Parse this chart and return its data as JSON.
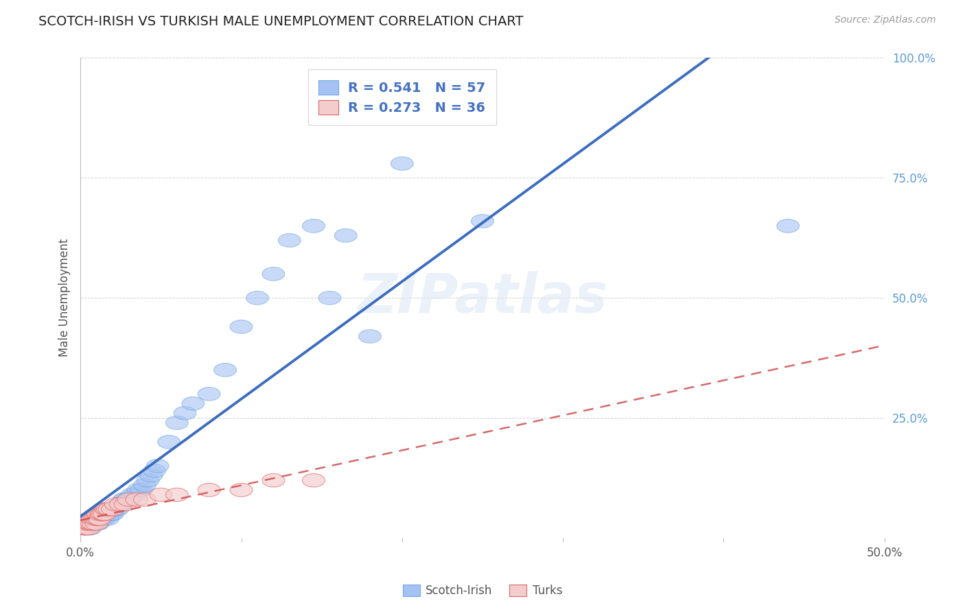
{
  "title": "SCOTCH-IRISH VS TURKISH MALE UNEMPLOYMENT CORRELATION CHART",
  "source": "Source: ZipAtlas.com",
  "ylabel": "Male Unemployment",
  "xlim": [
    0.0,
    0.5
  ],
  "ylim": [
    0.0,
    1.0
  ],
  "scotch_irish_color": "#a4c2f4",
  "scotch_irish_edge_color": "#6fa8dc",
  "turks_color": "#f4cccc",
  "turks_edge_color": "#e06666",
  "scotch_irish_line_color": "#3d6dbf",
  "turks_line_color": "#cc4444",
  "scotch_irish_x": [
    0.003,
    0.005,
    0.006,
    0.007,
    0.008,
    0.008,
    0.009,
    0.01,
    0.01,
    0.011,
    0.012,
    0.012,
    0.013,
    0.014,
    0.015,
    0.015,
    0.016,
    0.017,
    0.018,
    0.018,
    0.019,
    0.02,
    0.021,
    0.022,
    0.023,
    0.024,
    0.025,
    0.026,
    0.027,
    0.028,
    0.03,
    0.032,
    0.034,
    0.036,
    0.038,
    0.04,
    0.042,
    0.044,
    0.046,
    0.048,
    0.055,
    0.06,
    0.065,
    0.07,
    0.08,
    0.09,
    0.1,
    0.11,
    0.12,
    0.13,
    0.145,
    0.155,
    0.165,
    0.18,
    0.2,
    0.25,
    0.44
  ],
  "scotch_irish_y": [
    0.02,
    0.03,
    0.02,
    0.03,
    0.03,
    0.04,
    0.03,
    0.03,
    0.04,
    0.03,
    0.04,
    0.05,
    0.04,
    0.04,
    0.04,
    0.05,
    0.05,
    0.04,
    0.05,
    0.06,
    0.05,
    0.05,
    0.06,
    0.06,
    0.06,
    0.07,
    0.07,
    0.07,
    0.08,
    0.08,
    0.08,
    0.09,
    0.09,
    0.1,
    0.1,
    0.11,
    0.12,
    0.13,
    0.14,
    0.15,
    0.2,
    0.24,
    0.26,
    0.28,
    0.3,
    0.35,
    0.44,
    0.5,
    0.55,
    0.62,
    0.65,
    0.5,
    0.63,
    0.42,
    0.78,
    0.66,
    0.65
  ],
  "turks_x": [
    0.002,
    0.003,
    0.004,
    0.005,
    0.005,
    0.006,
    0.007,
    0.007,
    0.008,
    0.008,
    0.009,
    0.01,
    0.01,
    0.011,
    0.011,
    0.012,
    0.013,
    0.013,
    0.014,
    0.015,
    0.016,
    0.017,
    0.018,
    0.02,
    0.022,
    0.025,
    0.028,
    0.03,
    0.035,
    0.04,
    0.05,
    0.06,
    0.08,
    0.1,
    0.12,
    0.145
  ],
  "turks_y": [
    0.02,
    0.02,
    0.03,
    0.02,
    0.03,
    0.03,
    0.03,
    0.04,
    0.03,
    0.04,
    0.04,
    0.03,
    0.04,
    0.04,
    0.05,
    0.04,
    0.05,
    0.05,
    0.05,
    0.05,
    0.06,
    0.06,
    0.06,
    0.06,
    0.07,
    0.07,
    0.07,
    0.08,
    0.08,
    0.08,
    0.09,
    0.09,
    0.1,
    0.1,
    0.12,
    0.12
  ],
  "background_color": "#ffffff",
  "grid_color": "#cccccc",
  "watermark": "ZIPatlas",
  "legend_text_color": "#4472c4",
  "ylabel_color": "#555555",
  "yticklabel_color": "#5b9bd5",
  "xticklabel_color": "#555555",
  "title_color": "#222222",
  "source_color": "#999999"
}
